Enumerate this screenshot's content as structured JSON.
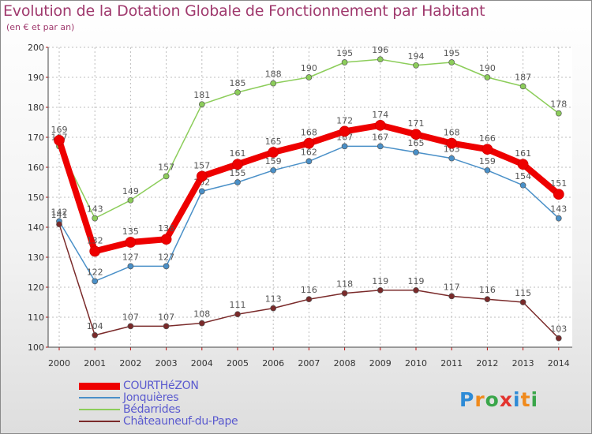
{
  "title": "Evolution de la Dotation Globale de Fonctionnement par Habitant",
  "subtitle": "(en € et par an)",
  "logo": {
    "text": "Proxiti",
    "colors": [
      "#2e8bd6",
      "#f08a1c",
      "#3aa64a",
      "#e3342f",
      "#2e8bd6",
      "#f08a1c",
      "#3aa64a"
    ]
  },
  "chart_data": {
    "type": "line",
    "title": "Evolution de la Dotation Globale de Fonctionnement par Habitant",
    "ylabel": "(en € et par an)",
    "x": [
      "2000",
      "2001",
      "2002",
      "2003",
      "2004",
      "2005",
      "2006",
      "2007",
      "2008",
      "2009",
      "2010",
      "2011",
      "2012",
      "2013",
      "2014"
    ],
    "ylim": [
      100,
      200
    ],
    "yticks": [
      "100",
      "110",
      "120",
      "130",
      "140",
      "150",
      "160",
      "170",
      "180",
      "190",
      "200"
    ],
    "series": [
      {
        "name": "Jonquières",
        "color": "#4a90c8",
        "values": [
          142,
          122,
          127,
          127,
          152,
          155,
          159,
          162,
          167,
          167,
          165,
          163,
          159,
          154,
          143
        ]
      },
      {
        "name": "Bédarrides",
        "color": "#8ccd5a",
        "values": [
          167,
          143,
          149,
          157,
          181,
          185,
          188,
          190,
          195,
          196,
          194,
          195,
          190,
          187,
          178
        ]
      },
      {
        "name": "Châteauneuf-du-Pape",
        "color": "#7a2a2a",
        "values": [
          141,
          104,
          107,
          107,
          108,
          111,
          113,
          116,
          118,
          119,
          119,
          117,
          116,
          115,
          103
        ]
      },
      {
        "name": "COURTHéZON",
        "color": "#ee0000",
        "values": [
          169,
          132,
          135,
          136,
          157,
          161,
          165,
          168,
          172,
          174,
          171,
          168,
          166,
          161,
          151
        ]
      }
    ],
    "legend": [
      {
        "name": "COURTHéZON",
        "color": "#ee0000"
      },
      {
        "name": "Jonquières",
        "color": "#4a90c8"
      },
      {
        "name": "Bédarrides",
        "color": "#8ccd5a"
      },
      {
        "name": "Châteauneuf-du-Pape",
        "color": "#7a2a2a"
      }
    ]
  }
}
